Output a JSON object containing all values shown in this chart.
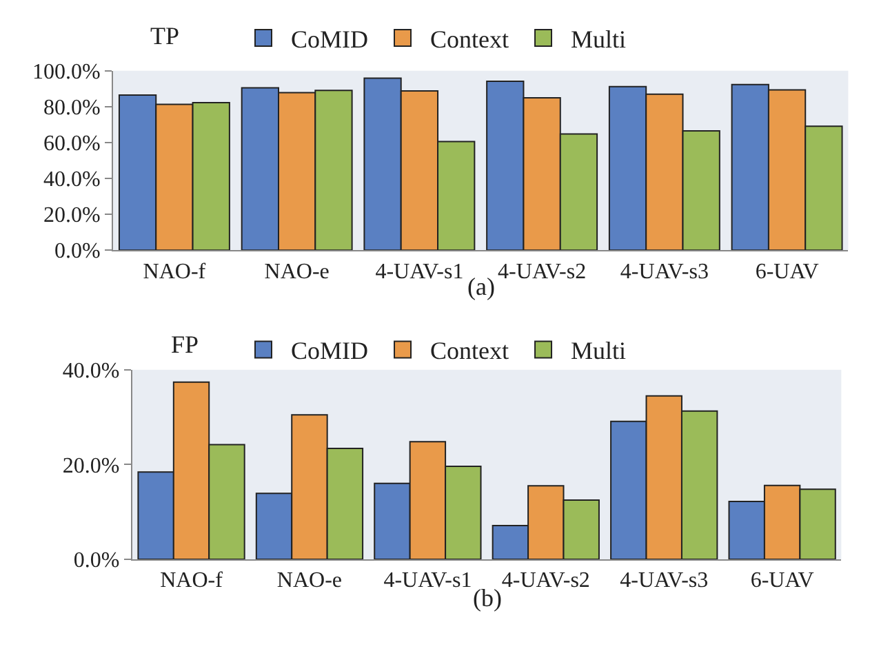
{
  "chart_data": [
    {
      "type": "bar",
      "ylabel": "TP",
      "xlabel": "(a)",
      "categories": [
        "NAO-f",
        "NAO-e",
        "4-UAV-s1",
        "4-UAV-s2",
        "4-UAV-s3",
        "6-UAV"
      ],
      "series": [
        {
          "name": "CoMID",
          "color": "#5a80c2",
          "values": [
            86.4,
            90.5,
            95.8,
            94.1,
            91.1,
            92.3
          ]
        },
        {
          "name": "Context",
          "color": "#e99a4a",
          "values": [
            81.3,
            87.8,
            88.7,
            84.9,
            86.9,
            89.3
          ]
        },
        {
          "name": "Multi",
          "color": "#9bbb59",
          "values": [
            82.2,
            89.0,
            60.5,
            64.7,
            66.5,
            69.1
          ]
        }
      ],
      "ylim": [
        0,
        100
      ],
      "yticks": [
        {
          "value": 0,
          "label": "0.0%"
        },
        {
          "value": 20,
          "label": "20.0%"
        },
        {
          "value": 40,
          "label": "40.0%"
        },
        {
          "value": 60,
          "label": "60.0%"
        },
        {
          "value": 80,
          "label": "80.0%"
        },
        {
          "value": 100,
          "label": "100.0%"
        }
      ],
      "grid": false,
      "legend": "top"
    },
    {
      "type": "bar",
      "ylabel": "FP",
      "xlabel": "(b)",
      "categories": [
        "NAO-f",
        "NAO-e",
        "4-UAV-s1",
        "4-UAV-s2",
        "4-UAV-s3",
        "6-UAV"
      ],
      "series": [
        {
          "name": "CoMID",
          "color": "#5a80c2",
          "values": [
            18.4,
            13.9,
            16.0,
            7.1,
            29.1,
            12.2
          ]
        },
        {
          "name": "Context",
          "color": "#e99a4a",
          "values": [
            37.4,
            30.5,
            24.8,
            15.5,
            34.5,
            15.6
          ]
        },
        {
          "name": "Multi",
          "color": "#9bbb59",
          "values": [
            24.2,
            23.4,
            19.6,
            12.5,
            31.3,
            14.8
          ]
        }
      ],
      "ylim": [
        0,
        40
      ],
      "yticks": [
        {
          "value": 0,
          "label": "0.0%"
        },
        {
          "value": 20,
          "label": "20.0%"
        },
        {
          "value": 40,
          "label": "40.0%"
        }
      ],
      "grid": false,
      "legend": "top"
    }
  ]
}
